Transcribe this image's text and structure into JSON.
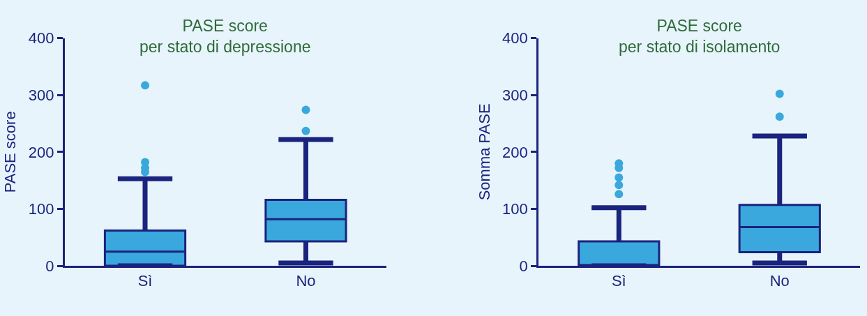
{
  "chart_data": [
    {
      "type": "box",
      "title": "PASE score\nper stato di depressione",
      "ylabel": "PASE score",
      "categories": [
        "Sì",
        "No"
      ],
      "ylim": [
        0,
        400
      ],
      "yticks": [
        0,
        100,
        200,
        300,
        400
      ],
      "grid": false,
      "series": [
        {
          "color": "#3aa8dc",
          "boxes": [
            {
              "low": 0,
              "q1": 0,
              "median": 25,
              "q3": 62,
              "high": 153,
              "outliers": [
                317,
                182,
                172,
                165
              ]
            },
            {
              "low": 5,
              "q1": 43,
              "median": 82,
              "q3": 116,
              "high": 222,
              "outliers": [
                274,
                237
              ]
            }
          ]
        }
      ]
    },
    {
      "type": "box",
      "title": "PASE score\nper stato di isolamento",
      "ylabel": "Somma PASE",
      "categories": [
        "Sì",
        "No"
      ],
      "ylim": [
        0,
        400
      ],
      "yticks": [
        0,
        100,
        200,
        300,
        400
      ],
      "grid": false,
      "series": [
        {
          "color": "#3aa8dc",
          "boxes": [
            {
              "low": 0,
              "q1": 0,
              "median": 0,
              "q3": 43,
              "high": 102,
              "outliers": [
                180,
                172,
                155,
                142,
                126
              ]
            },
            {
              "low": 5,
              "q1": 24,
              "median": 68,
              "q3": 107,
              "high": 228,
              "outliers": [
                302,
                262
              ]
            }
          ]
        }
      ]
    }
  ]
}
